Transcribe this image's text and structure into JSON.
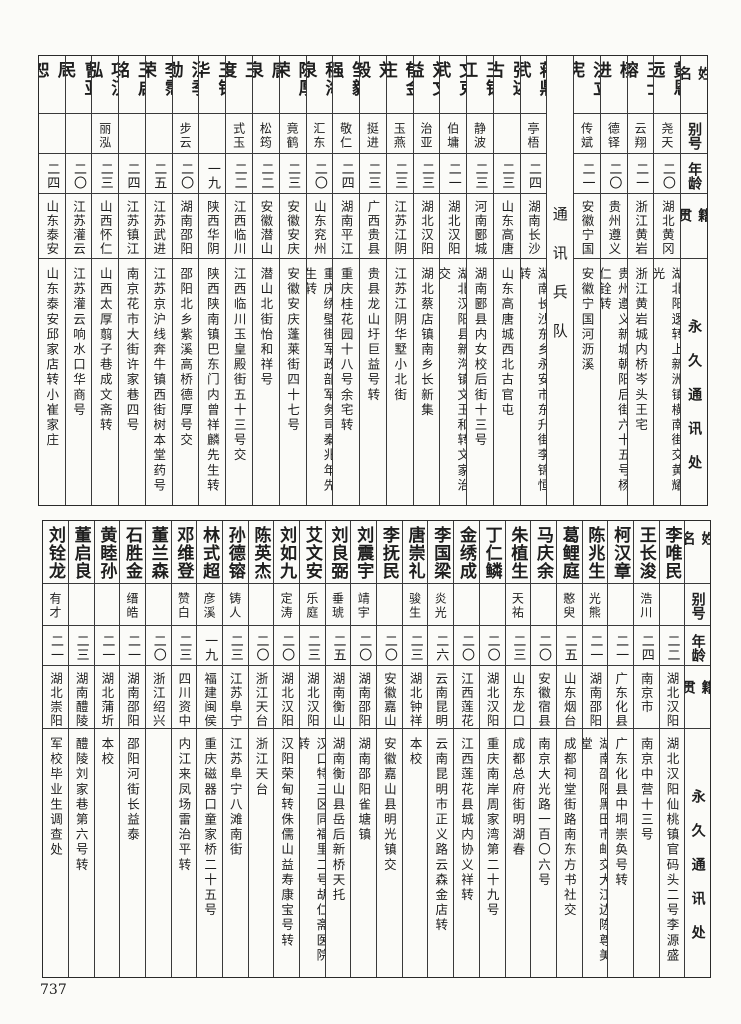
{
  "headers": {
    "name": "姓名",
    "alias": "别号",
    "age": "年龄",
    "hometown": "籍贯",
    "address": "永久通讯处"
  },
  "top_table": {
    "group_a": [
      {
        "name": "黄恩远",
        "alias": "尧天",
        "age": "二〇",
        "hometown": "湖北黄冈",
        "address": "湖北阳逻转上新洲镇横南街交黄耀光"
      },
      {
        "name": "王士镕",
        "alias": "云翔",
        "age": "二一",
        "hometown": "浙江黄岩",
        "address": "浙江黄岩城内桥岑头王宅"
      },
      {
        "name": "杨进",
        "alias": "德铎",
        "age": "二〇",
        "hometown": "贵州遵义",
        "address": "贵州遵义新城朝阳后街六十五号杨仁铨转"
      },
      {
        "name": "洪立宪",
        "alias": "传斌",
        "age": "二一",
        "hometown": "安徽宁国",
        "address": "安徽宁国河沥溪"
      }
    ],
    "section_label": "通讯兵队",
    "group_b": [
      {
        "name": "蒋鼎武",
        "alias": "亭梧",
        "age": "二四",
        "hometown": "湖南长沙",
        "address": "湖南长沙东乡永安市东升街李锦恒转"
      },
      {
        "name": "张述古",
        "alias": "",
        "age": "二三",
        "hometown": "山东高唐",
        "address": "山东高唐城西北古官屯"
      },
      {
        "name": "王镇江",
        "alias": "静波",
        "age": "二三",
        "hometown": "河南郾城",
        "address": "湖南郾县内女校后街十三号"
      },
      {
        "name": "文克武",
        "alias": "伯墉",
        "age": "二一",
        "hometown": "湖北汉阳",
        "address": "湖北汉阳县新沟镇文玉和转文家治交"
      },
      {
        "name": "刘文益",
        "alias": "治亚",
        "age": "二三",
        "hometown": "湖北汉阳",
        "address": "湖北蔡店镇南乡长新集"
      },
      {
        "name": "郁金庄",
        "alias": "玉燕",
        "age": "二三",
        "hometown": "江苏江阴",
        "address": "江苏江阴华墅小北街"
      },
      {
        "name": "刘毅",
        "alias": "挺进",
        "age": "二三",
        "hometown": "广西贵县",
        "address": "贵县龙山圩巨益号转"
      },
      {
        "name": "邹毅强",
        "alias": "敬仁",
        "age": "二四",
        "hometown": "湖南平江",
        "address": "重庆桂花园十八号余宅转"
      },
      {
        "name": "程海泉",
        "alias": "汇东",
        "age": "二〇",
        "hometown": "山东兖州",
        "address": "重庆绣壁街军政部军务司秦兆年先生转"
      },
      {
        "name": "陈厚荣",
        "alias": "竟鹤",
        "age": "二三",
        "hometown": "安徽安庆",
        "address": "安徽安庆蓬莱街四十七号"
      },
      {
        "name": "唐泉",
        "alias": "松筠",
        "age": "二二",
        "hometown": "安徽潜山",
        "address": "潜山北街怡和祥号"
      },
      {
        "name": "王度",
        "alias": "式玉",
        "age": "二二",
        "hometown": "江西临川",
        "address": "江西临川玉皇殿街五十三号交"
      },
      {
        "name": "王镇华",
        "alias": "",
        "age": "一九",
        "hometown": "陕西华阴",
        "address": "陕西陕南镇巴东门内曾祥麟先生转"
      },
      {
        "name": "汪季勋",
        "alias": "步云",
        "age": "二〇",
        "hometown": "湖南邵阳",
        "address": "邵阳北乡紫溪高桥德厚号交"
      },
      {
        "name": "李霈荣",
        "alias": "",
        "age": "二五",
        "hometown": "江苏武进",
        "address": "江苏京沪线奔牛镇西街树本堂药号"
      },
      {
        "name": "王启铭",
        "alias": "",
        "age": "二四",
        "hometown": "江苏镇江",
        "address": "南京花市大街许家巷四号"
      },
      {
        "name": "项汉泓",
        "alias": "丽泓",
        "age": "二三",
        "hometown": "山西怀仁",
        "address": "山西太厚翦子巷成文斋转"
      },
      {
        "name": "曹亚民",
        "alias": "",
        "age": "二〇",
        "hometown": "江苏灌云",
        "address": "江苏灌云响水口华商号"
      },
      {
        "name": "周恕",
        "alias": "",
        "age": "二四",
        "hometown": "山东泰安",
        "address": "山东泰安邱家店转小崔家庄"
      }
    ]
  },
  "bottom_table": [
    {
      "name": "李唯民",
      "alias": "",
      "age": "二二",
      "hometown": "湖北汉阳",
      "address": "湖北汉阳仙桃镇官码头二号李源盛"
    },
    {
      "name": "王长浚",
      "alias": "浩川",
      "age": "二四",
      "hometown": "南京市",
      "address": "南京中营十三号"
    },
    {
      "name": "柯汉章",
      "alias": "",
      "age": "二一",
      "hometown": "广东化县",
      "address": "广东化县中垌崇奂号转"
    },
    {
      "name": "陈兆生",
      "alias": "光熊",
      "age": "二一",
      "hometown": "湖南邵阳",
      "address": "湖南邵阳黑田市邮交大江边陈尊美堂"
    },
    {
      "name": "葛鲤庭",
      "alias": "憨臾",
      "age": "二五",
      "hometown": "山东烟台",
      "address": "成都祠堂街路南东方书社交"
    },
    {
      "name": "马庆余",
      "alias": "",
      "age": "二〇",
      "hometown": "安徽宿县",
      "address": "南京大光路一百〇六号"
    },
    {
      "name": "朱植生",
      "alias": "天祐",
      "age": "二三",
      "hometown": "山东龙口",
      "address": "成都总府街明湖春"
    },
    {
      "name": "丁仁鳞",
      "alias": "",
      "age": "二〇",
      "hometown": "湖北汉阳",
      "address": "重庆南岸周家湾第二十九号"
    },
    {
      "name": "金绣成",
      "alias": "",
      "age": "二〇",
      "hometown": "江西莲花",
      "address": "江西莲花县城内协义祥转"
    },
    {
      "name": "李国梁",
      "alias": "炎光",
      "age": "二六",
      "hometown": "云南昆明",
      "address": "云南昆明市正义路云森金店转"
    },
    {
      "name": "唐崇礼",
      "alias": "骏生",
      "age": "二三",
      "hometown": "湖北钟祥",
      "address": "本校"
    },
    {
      "name": "李抚民",
      "alias": "",
      "age": "二〇",
      "hometown": "安徽嘉山",
      "address": "安徽嘉山县明光镇交"
    },
    {
      "name": "刘震宇",
      "alias": "靖宇",
      "age": "二〇",
      "hometown": "湖南邵阳",
      "address": "湖南邵阳雀塘镇"
    },
    {
      "name": "刘良弼",
      "alias": "垂琥",
      "age": "二五",
      "hometown": "湖南衡山",
      "address": "湖南衡山县岳后新桥天托"
    },
    {
      "name": "艾文安",
      "alias": "乐庭",
      "age": "二三",
      "hometown": "湖北汉阳",
      "address": "汉口特三区同福里二号胡仁斋医院转"
    },
    {
      "name": "刘如九",
      "alias": "定涛",
      "age": "二〇",
      "hometown": "湖北汉阳",
      "address": "汉阳荣甸转侏儒山益寿康宝号转"
    },
    {
      "name": "陈英杰",
      "alias": "",
      "age": "二〇",
      "hometown": "浙江天台",
      "address": "浙江天台"
    },
    {
      "name": "孙德镕",
      "alias": "铸人",
      "age": "二三",
      "hometown": "江苏阜宁",
      "address": "江苏阜宁八滩南街"
    },
    {
      "name": "林式超",
      "alias": "彦溪",
      "age": "一九",
      "hometown": "福建闽侯",
      "address": "重庆磁器口童家桥二十五号"
    },
    {
      "name": "邓维登",
      "alias": "赞白",
      "age": "二三",
      "hometown": "四川资中",
      "address": "内江来凤场雷治平转"
    },
    {
      "name": "董兰森",
      "alias": "",
      "age": "二〇",
      "hometown": "浙江绍兴",
      "address": ""
    },
    {
      "name": "石胜金",
      "alias": "缙皓",
      "age": "二一",
      "hometown": "湖南邵阳",
      "address": "邵阳河街长益泰"
    },
    {
      "name": "黄睦孙",
      "alias": "",
      "age": "二一",
      "hometown": "湖北蒲圻",
      "address": "本校"
    },
    {
      "name": "董启良",
      "alias": "",
      "age": "二三",
      "hometown": "湖南醴陵",
      "address": "醴陵刘家巷第六号转"
    },
    {
      "name": "刘铨龙",
      "alias": "有才",
      "age": "二一",
      "hometown": "湖北崇阳",
      "address": "军校毕业生调查处"
    }
  ],
  "page_number": "737"
}
